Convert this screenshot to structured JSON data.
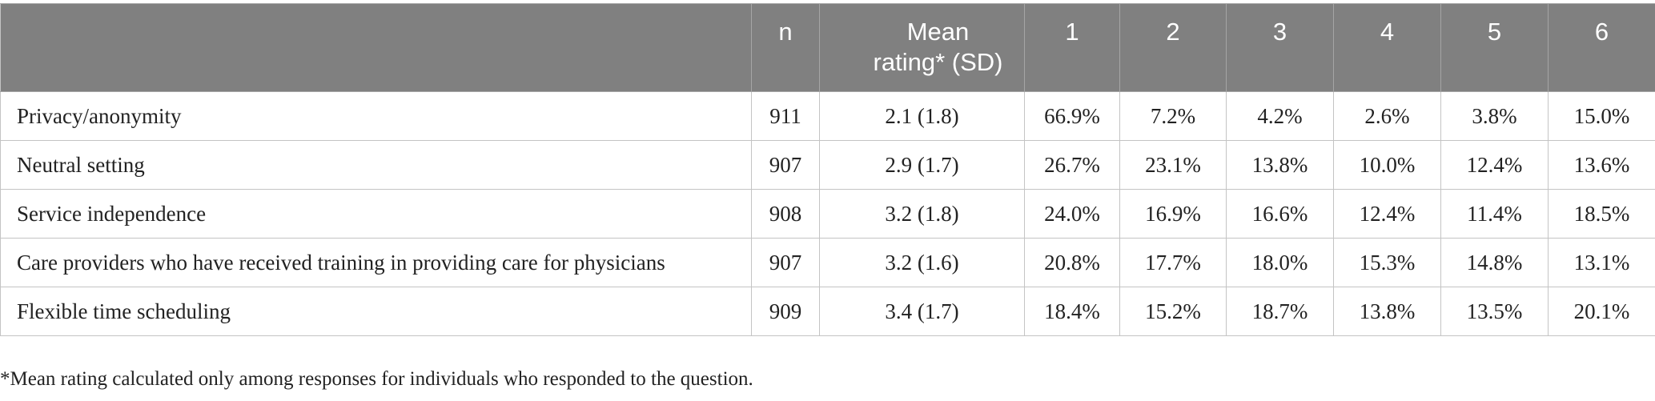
{
  "table": {
    "headers": [
      "",
      "n",
      "Mean rating* (SD)",
      "1",
      "2",
      "3",
      "4",
      "5",
      "6"
    ],
    "rows": [
      [
        "Privacy/anonymity",
        "911",
        "2.1 (1.8)",
        "66.9%",
        "7.2%",
        "4.2%",
        "2.6%",
        "3.8%",
        "15.0%"
      ],
      [
        "Neutral setting",
        "907",
        "2.9 (1.7)",
        "26.7%",
        "23.1%",
        "13.8%",
        "10.0%",
        "12.4%",
        "13.6%"
      ],
      [
        "Service independence",
        "908",
        "3.2 (1.8)",
        "24.0%",
        "16.9%",
        "16.6%",
        "12.4%",
        "11.4%",
        "18.5%"
      ],
      [
        "Care providers who have received training in providing care for physicians",
        "907",
        "3.2 (1.6)",
        "20.8%",
        "17.7%",
        "18.0%",
        "15.3%",
        "14.8%",
        "13.1%"
      ],
      [
        "Flexible time scheduling",
        "909",
        "3.4 (1.7)",
        "18.4%",
        "15.2%",
        "18.7%",
        "13.8%",
        "13.5%",
        "20.1%"
      ]
    ]
  },
  "footnote": "*Mean rating calculated only among responses for individuals who responded to the question."
}
